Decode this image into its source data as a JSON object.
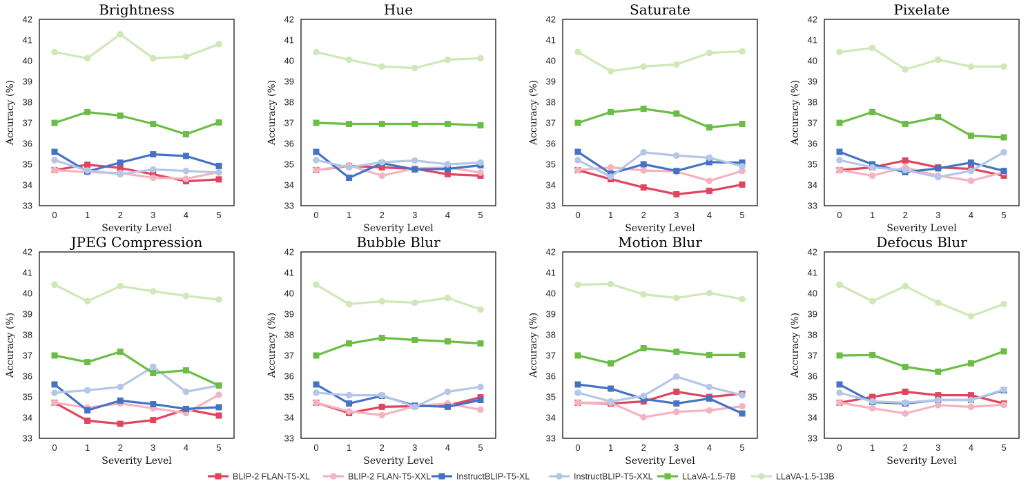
{
  "chart_data": [
    {
      "type": "line",
      "title": "Brightness",
      "xlabel": "Severity Level",
      "ylabel": "Accuracy (%)",
      "x": [
        0,
        1,
        2,
        3,
        4,
        5
      ],
      "ylim": [
        33,
        42
      ],
      "yticks": [
        33,
        34,
        35,
        36,
        37,
        38,
        39,
        40,
        41,
        42
      ],
      "grid": false,
      "series": [
        {
          "name": "BLIP-2 FLAN-T5-XL",
          "values": [
            34.72,
            34.98,
            34.82,
            34.52,
            34.18,
            34.27
          ]
        },
        {
          "name": "BLIP-2 FLAN-T5-XXL",
          "values": [
            34.72,
            34.62,
            34.58,
            34.35,
            34.3,
            34.62
          ]
        },
        {
          "name": "InstructBLIP-T5-XL",
          "values": [
            35.6,
            34.65,
            35.08,
            35.48,
            35.4,
            34.92
          ]
        },
        {
          "name": "InstructBLIP-T5-XXL",
          "values": [
            35.2,
            34.7,
            34.52,
            34.75,
            34.68,
            34.6
          ]
        },
        {
          "name": "LLaVA-1.5-7B",
          "values": [
            37.0,
            37.52,
            37.35,
            36.95,
            36.45,
            37.02
          ]
        },
        {
          "name": "LLaVA-1.5-13B",
          "values": [
            40.42,
            40.12,
            41.28,
            40.12,
            40.2,
            40.8
          ]
        }
      ]
    },
    {
      "type": "line",
      "title": "Hue",
      "xlabel": "Severity Level",
      "ylabel": "Accuracy (%)",
      "x": [
        0,
        1,
        2,
        3,
        4,
        5
      ],
      "ylim": [
        33,
        42
      ],
      "yticks": [
        33,
        34,
        35,
        36,
        37,
        38,
        39,
        40,
        41,
        42
      ],
      "grid": false,
      "series": [
        {
          "name": "BLIP-2 FLAN-T5-XL",
          "values": [
            34.72,
            34.92,
            34.85,
            34.78,
            34.52,
            34.45
          ]
        },
        {
          "name": "BLIP-2 FLAN-T5-XXL",
          "values": [
            34.72,
            34.95,
            34.45,
            34.8,
            34.85,
            34.6
          ]
        },
        {
          "name": "InstructBLIP-T5-XL",
          "values": [
            35.6,
            34.35,
            35.05,
            34.75,
            34.78,
            34.95
          ]
        },
        {
          "name": "InstructBLIP-T5-XXL",
          "values": [
            35.2,
            34.85,
            35.1,
            35.18,
            35.0,
            35.08
          ]
        },
        {
          "name": "LLaVA-1.5-7B",
          "values": [
            37.0,
            36.95,
            36.95,
            36.95,
            36.95,
            36.88
          ]
        },
        {
          "name": "LLaVA-1.5-13B",
          "values": [
            40.42,
            40.05,
            39.72,
            39.65,
            40.05,
            40.12
          ]
        }
      ]
    },
    {
      "type": "line",
      "title": "Saturate",
      "xlabel": "Severity Level",
      "ylabel": "Accuracy (%)",
      "x": [
        0,
        1,
        2,
        3,
        4,
        5
      ],
      "ylim": [
        33,
        42
      ],
      "yticks": [
        33,
        34,
        35,
        36,
        37,
        38,
        39,
        40,
        41,
        42
      ],
      "grid": false,
      "series": [
        {
          "name": "BLIP-2 FLAN-T5-XL",
          "values": [
            34.72,
            34.28,
            33.88,
            33.55,
            33.72,
            34.02
          ]
        },
        {
          "name": "BLIP-2 FLAN-T5-XXL",
          "values": [
            34.72,
            34.85,
            34.7,
            34.65,
            34.2,
            34.68
          ]
        },
        {
          "name": "InstructBLIP-T5-XL",
          "values": [
            35.6,
            34.55,
            35.0,
            34.68,
            35.1,
            35.08
          ]
        },
        {
          "name": "InstructBLIP-T5-XXL",
          "values": [
            35.2,
            34.4,
            35.58,
            35.42,
            35.32,
            34.9
          ]
        },
        {
          "name": "LLaVA-1.5-7B",
          "values": [
            37.0,
            37.52,
            37.68,
            37.45,
            36.78,
            36.95
          ]
        },
        {
          "name": "LLaVA-1.5-13B",
          "values": [
            40.42,
            39.5,
            39.72,
            39.82,
            40.38,
            40.45
          ]
        }
      ]
    },
    {
      "type": "line",
      "title": "Pixelate",
      "xlabel": "Severity Level",
      "ylabel": "Accuracy (%)",
      "x": [
        0,
        1,
        2,
        3,
        4,
        5
      ],
      "ylim": [
        33,
        42
      ],
      "yticks": [
        33,
        34,
        35,
        36,
        37,
        38,
        39,
        40,
        41,
        42
      ],
      "grid": false,
      "series": [
        {
          "name": "BLIP-2 FLAN-T5-XL",
          "values": [
            34.72,
            34.85,
            35.18,
            34.85,
            34.78,
            34.45
          ]
        },
        {
          "name": "BLIP-2 FLAN-T5-XXL",
          "values": [
            34.72,
            34.45,
            34.85,
            34.45,
            34.2,
            34.62
          ]
        },
        {
          "name": "InstructBLIP-T5-XL",
          "values": [
            35.6,
            35.0,
            34.62,
            34.8,
            35.08,
            34.68
          ]
        },
        {
          "name": "InstructBLIP-T5-XXL",
          "values": [
            35.2,
            34.85,
            34.72,
            34.38,
            34.68,
            35.58
          ]
        },
        {
          "name": "LLaVA-1.5-7B",
          "values": [
            37.0,
            37.52,
            36.95,
            37.28,
            36.38,
            36.3
          ]
        },
        {
          "name": "LLaVA-1.5-13B",
          "values": [
            40.42,
            40.62,
            39.58,
            40.05,
            39.72,
            39.72
          ]
        }
      ]
    },
    {
      "type": "line",
      "title": "JPEG Compression",
      "xlabel": "Severity Level",
      "ylabel": "Accuracy (%)",
      "x": [
        0,
        1,
        2,
        3,
        4,
        5
      ],
      "ylim": [
        33,
        42
      ],
      "yticks": [
        33,
        34,
        35,
        36,
        37,
        38,
        39,
        40,
        41,
        42
      ],
      "grid": false,
      "series": [
        {
          "name": "BLIP-2 FLAN-T5-XL",
          "values": [
            34.72,
            33.85,
            33.7,
            33.88,
            34.4,
            34.1
          ]
        },
        {
          "name": "BLIP-2 FLAN-T5-XXL",
          "values": [
            34.72,
            34.48,
            34.68,
            34.45,
            34.22,
            35.1
          ]
        },
        {
          "name": "InstructBLIP-T5-XL",
          "values": [
            35.6,
            34.35,
            34.82,
            34.65,
            34.42,
            34.5
          ]
        },
        {
          "name": "InstructBLIP-T5-XXL",
          "values": [
            35.2,
            35.32,
            35.48,
            36.45,
            35.25,
            35.55
          ]
        },
        {
          "name": "LLaVA-1.5-7B",
          "values": [
            37.0,
            36.68,
            37.18,
            36.15,
            36.28,
            35.55
          ]
        },
        {
          "name": "LLaVA-1.5-13B",
          "values": [
            40.42,
            39.62,
            40.35,
            40.1,
            39.88,
            39.7
          ]
        }
      ]
    },
    {
      "type": "line",
      "title": "Bubble Blur",
      "xlabel": "Severity Level",
      "ylabel": "Accuracy (%)",
      "x": [
        0,
        1,
        2,
        3,
        4,
        5
      ],
      "ylim": [
        33,
        42
      ],
      "yticks": [
        33,
        34,
        35,
        36,
        37,
        38,
        39,
        40,
        41,
        42
      ],
      "grid": false,
      "series": [
        {
          "name": "BLIP-2 FLAN-T5-XL",
          "values": [
            34.72,
            34.22,
            34.52,
            34.55,
            34.58,
            34.98
          ]
        },
        {
          "name": "BLIP-2 FLAN-T5-XXL",
          "values": [
            34.72,
            34.3,
            34.12,
            34.55,
            34.68,
            34.38
          ]
        },
        {
          "name": "InstructBLIP-T5-XL",
          "values": [
            35.6,
            34.68,
            35.05,
            34.58,
            34.52,
            34.85
          ]
        },
        {
          "name": "InstructBLIP-T5-XXL",
          "values": [
            35.2,
            35.08,
            35.08,
            34.52,
            35.25,
            35.48
          ]
        },
        {
          "name": "LLaVA-1.5-7B",
          "values": [
            37.0,
            37.58,
            37.85,
            37.75,
            37.68,
            37.58
          ]
        },
        {
          "name": "LLaVA-1.5-13B",
          "values": [
            40.42,
            39.48,
            39.62,
            39.55,
            39.78,
            39.22
          ]
        }
      ]
    },
    {
      "type": "line",
      "title": "Motion Blur",
      "xlabel": "Severity Level",
      "ylabel": "Accuracy (%)",
      "x": [
        0,
        1,
        2,
        3,
        4,
        5
      ],
      "ylim": [
        33,
        42
      ],
      "yticks": [
        33,
        34,
        35,
        36,
        37,
        38,
        39,
        40,
        41,
        42
      ],
      "grid": false,
      "series": [
        {
          "name": "BLIP-2 FLAN-T5-XL",
          "values": [
            34.72,
            34.68,
            34.78,
            35.25,
            35.0,
            35.15
          ]
        },
        {
          "name": "BLIP-2 FLAN-T5-XXL",
          "values": [
            34.72,
            34.72,
            34.02,
            34.28,
            34.35,
            34.55
          ]
        },
        {
          "name": "InstructBLIP-T5-XL",
          "values": [
            35.6,
            35.4,
            34.9,
            34.68,
            34.92,
            34.2
          ]
        },
        {
          "name": "InstructBLIP-T5-XXL",
          "values": [
            35.2,
            34.78,
            35.05,
            35.98,
            35.48,
            35.08
          ]
        },
        {
          "name": "LLaVA-1.5-7B",
          "values": [
            37.0,
            36.62,
            37.35,
            37.18,
            37.02,
            37.02
          ]
        },
        {
          "name": "LLaVA-1.5-13B",
          "values": [
            40.42,
            40.45,
            39.95,
            39.78,
            40.02,
            39.72
          ]
        }
      ]
    },
    {
      "type": "line",
      "title": "Defocus Blur",
      "xlabel": "Severity Level",
      "ylabel": "Accuracy (%)",
      "x": [
        0,
        1,
        2,
        3,
        4,
        5
      ],
      "ylim": [
        33,
        42
      ],
      "yticks": [
        33,
        34,
        35,
        36,
        37,
        38,
        39,
        40,
        41,
        42
      ],
      "grid": false,
      "series": [
        {
          "name": "BLIP-2 FLAN-T5-XL",
          "values": [
            34.72,
            35.0,
            35.25,
            35.08,
            35.08,
            34.68
          ]
        },
        {
          "name": "BLIP-2 FLAN-T5-XXL",
          "values": [
            34.72,
            34.45,
            34.2,
            34.6,
            34.52,
            34.62
          ]
        },
        {
          "name": "InstructBLIP-T5-XL",
          "values": [
            35.6,
            34.75,
            34.68,
            34.85,
            34.85,
            35.32
          ]
        },
        {
          "name": "InstructBLIP-T5-XXL",
          "values": [
            35.2,
            34.78,
            34.72,
            34.85,
            34.85,
            35.35
          ]
        },
        {
          "name": "LLaVA-1.5-7B",
          "values": [
            37.0,
            37.02,
            36.45,
            36.22,
            36.62,
            37.2
          ]
        },
        {
          "name": "LLaVA-1.5-13B",
          "values": [
            40.42,
            39.62,
            40.35,
            39.55,
            38.9,
            39.48
          ]
        }
      ]
    }
  ],
  "legend": {
    "placement": "bottom-center",
    "items": [
      {
        "name": "BLIP-2 FLAN-T5-XL",
        "color": "#e0455d",
        "marker": "square"
      },
      {
        "name": "BLIP-2 FLAN-T5-XXL",
        "color": "#f5b3c0",
        "marker": "circle"
      },
      {
        "name": "InstructBLIP-T5-XL",
        "color": "#4472c4",
        "marker": "square"
      },
      {
        "name": "InstructBLIP-T5-XXL",
        "color": "#b4c7e7",
        "marker": "circle"
      },
      {
        "name": "LLaVA-1.5-7B",
        "color": "#6bbd45",
        "marker": "square"
      },
      {
        "name": "LLaVA-1.5-13B",
        "color": "#cfe8b8",
        "marker": "circle"
      }
    ]
  }
}
